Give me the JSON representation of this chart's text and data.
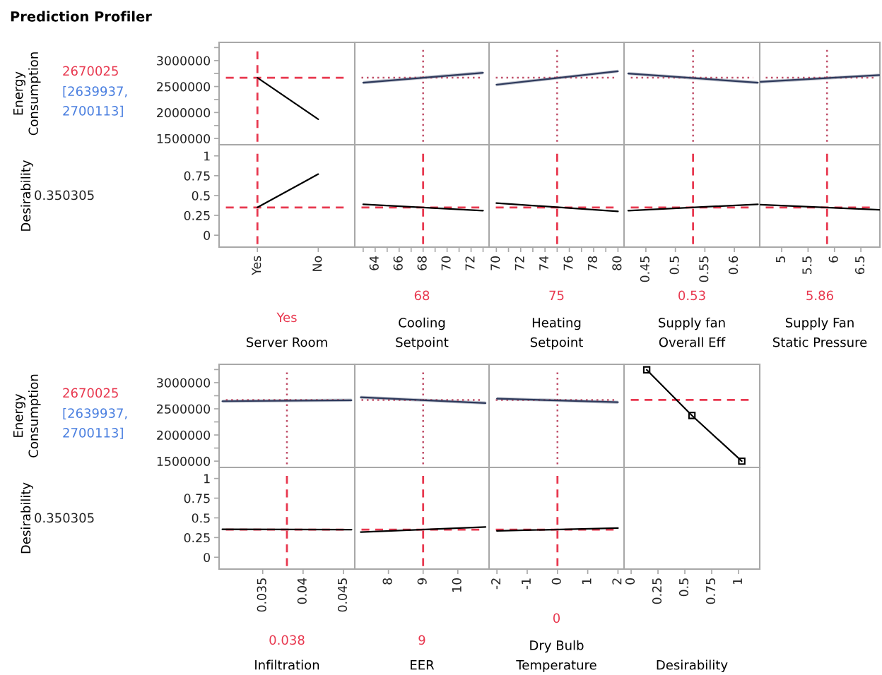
{
  "chart_data": [
    {
      "type": "line",
      "title": "Prediction Profiler",
      "ylabel": "Energy\nConsumption",
      "categories": [
        "Yes",
        "No"
      ],
      "series": [
        {
          "color": "#000000",
          "values": [
            2670000,
            1870000
          ]
        }
      ],
      "ylim": [
        1380000,
        3350000
      ],
      "yticks": [
        1500000,
        {
          "value": 1750000,
          "label": null
        },
        2000000,
        {
          "value": 2250000,
          "label": null
        },
        2500000,
        {
          "value": 2750000,
          "label": null
        },
        3000000,
        {
          "value": 3250000,
          "label": null
        }
      ],
      "ref_lines": [
        {
          "axis": "x",
          "value": "Yes",
          "color": "#e8384f",
          "line_style": "dashed"
        },
        {
          "axis": "y",
          "value": 2670025,
          "color": "#e8384f",
          "line_style": "dashed"
        }
      ],
      "annotations": [
        "2670025",
        "[2639937,\n2700113]"
      ],
      "tick_labels": "y"
    },
    {
      "type": "line",
      "x": [
        63,
        73
      ],
      "series": [
        {
          "color": "#2e3a5c",
          "values": [
            2575000,
            2765000
          ],
          "lower": [
            2545000,
            2735000
          ],
          "upper": [
            2605000,
            2795000
          ]
        }
      ],
      "xlim": [
        62.3,
        73.5
      ],
      "ylim": [
        1380000,
        3350000
      ],
      "ref_lines": [
        {
          "axis": "x",
          "value": 68,
          "color": "#c0506a",
          "line_style": "dotted"
        },
        {
          "axis": "y",
          "value": 2670025,
          "color": "#c0506a",
          "line_style": "dotted"
        }
      ],
      "tick_labels": false
    },
    {
      "type": "line",
      "x": [
        70,
        80
      ],
      "series": [
        {
          "color": "#2e3a5c",
          "values": [
            2535000,
            2795000
          ],
          "lower": [
            2505000,
            2765000
          ],
          "upper": [
            2565000,
            2825000
          ]
        }
      ],
      "xlim": [
        69.4,
        80.5
      ],
      "ylim": [
        1380000,
        3350000
      ],
      "ref_lines": [
        {
          "axis": "x",
          "value": 75,
          "color": "#c0506a",
          "line_style": "dotted"
        },
        {
          "axis": "y",
          "value": 2670025,
          "color": "#c0506a",
          "line_style": "dotted"
        }
      ],
      "tick_labels": false
    },
    {
      "type": "line",
      "x": [
        0.42,
        0.64
      ],
      "series": [
        {
          "color": "#2e3a5c",
          "values": [
            2750000,
            2575000
          ],
          "lower": [
            2720000,
            2545000
          ],
          "upper": [
            2780000,
            2605000
          ]
        }
      ],
      "xlim": [
        0.413,
        0.643
      ],
      "ylim": [
        1380000,
        3350000
      ],
      "ref_lines": [
        {
          "axis": "x",
          "value": 0.53,
          "color": "#c0506a",
          "line_style": "dotted"
        },
        {
          "axis": "y",
          "value": 2670025,
          "color": "#c0506a",
          "line_style": "dotted"
        }
      ],
      "tick_labels": false
    },
    {
      "type": "line",
      "x": [
        4.6,
        6.85
      ],
      "series": [
        {
          "color": "#2e3a5c",
          "values": [
            2590000,
            2720000
          ],
          "lower": [
            2560000,
            2690000
          ],
          "upper": [
            2620000,
            2750000
          ]
        }
      ],
      "xlim": [
        4.585,
        6.86
      ],
      "ylim": [
        1380000,
        3350000
      ],
      "ref_lines": [
        {
          "axis": "x",
          "value": 5.86,
          "color": "#c0506a",
          "line_style": "dotted"
        },
        {
          "axis": "y",
          "value": 2670025,
          "color": "#c0506a",
          "line_style": "dotted"
        }
      ],
      "tick_labels": false
    },
    {
      "type": "line",
      "ylabel": "Desirability",
      "xlabel": "Server Room",
      "categories": [
        "Yes",
        "No"
      ],
      "series": [
        {
          "color": "#000000",
          "values": [
            0.35,
            0.77
          ]
        }
      ],
      "ylim": [
        -0.15,
        1.14
      ],
      "yticks": [
        0,
        0.25,
        0.5,
        0.75,
        1
      ],
      "ref_lines": [
        {
          "axis": "x",
          "value": "Yes",
          "color": "#e8384f",
          "line_style": "dashed"
        },
        {
          "axis": "y",
          "value": 0.350305,
          "color": "#e8384f",
          "line_style": "dashed"
        }
      ],
      "annotations": [
        "Yes",
        "0.350305"
      ]
    },
    {
      "type": "line",
      "xlabel": "Cooling\nSetpoint",
      "x": [
        63,
        73
      ],
      "series": [
        {
          "color": "#000000",
          "values": [
            0.39,
            0.31
          ]
        }
      ],
      "xlim": [
        62.3,
        73.5
      ],
      "ylim": [
        -0.15,
        1.14
      ],
      "xticks": [
        {
          "value": 63,
          "label": null
        },
        64,
        {
          "value": 65,
          "label": null
        },
        66,
        {
          "value": 67,
          "label": null
        },
        68,
        {
          "value": 69,
          "label": null
        },
        70,
        {
          "value": 71,
          "label": null
        },
        72,
        {
          "value": 73,
          "label": null
        }
      ],
      "ref_lines": [
        {
          "axis": "x",
          "value": 68,
          "color": "#e8384f",
          "line_style": "dashed"
        },
        {
          "axis": "y",
          "value": 0.350305,
          "color": "#e8384f",
          "line_style": "dashed"
        }
      ],
      "annotations": [
        "68"
      ],
      "tick_labels": "x"
    },
    {
      "type": "line",
      "xlabel": "Heating\nSetpoint",
      "x": [
        70,
        80
      ],
      "series": [
        {
          "color": "#000000",
          "values": [
            0.405,
            0.3
          ]
        }
      ],
      "xlim": [
        69.4,
        80.5
      ],
      "ylim": [
        -0.15,
        1.14
      ],
      "xticks": [
        70,
        {
          "value": 71,
          "label": null
        },
        72,
        {
          "value": 73,
          "label": null
        },
        74,
        {
          "value": 75,
          "label": null
        },
        76,
        {
          "value": 77,
          "label": null
        },
        78,
        {
          "value": 79,
          "label": null
        },
        80
      ],
      "ref_lines": [
        {
          "axis": "x",
          "value": 75,
          "color": "#e8384f",
          "line_style": "dashed"
        },
        {
          "axis": "y",
          "value": 0.350305,
          "color": "#e8384f",
          "line_style": "dashed"
        }
      ],
      "annotations": [
        "75"
      ],
      "tick_labels": "x"
    },
    {
      "type": "line",
      "xlabel": "Supply fan\nOverall Eff",
      "x": [
        0.42,
        0.64
      ],
      "series": [
        {
          "color": "#000000",
          "values": [
            0.31,
            0.39
          ]
        }
      ],
      "xlim": [
        0.413,
        0.643
      ],
      "ylim": [
        -0.15,
        1.14
      ],
      "xticks": [
        0.45,
        0.5,
        0.55,
        0.6
      ],
      "ref_lines": [
        {
          "axis": "x",
          "value": 0.53,
          "color": "#e8384f",
          "line_style": "dashed"
        },
        {
          "axis": "y",
          "value": 0.350305,
          "color": "#e8384f",
          "line_style": "dashed"
        }
      ],
      "annotations": [
        "0.53"
      ],
      "tick_labels": "x"
    },
    {
      "type": "line",
      "xlabel": "Supply Fan\nStatic Pressure",
      "x": [
        4.6,
        6.85
      ],
      "series": [
        {
          "color": "#000000",
          "values": [
            0.385,
            0.32
          ]
        }
      ],
      "xlim": [
        4.585,
        6.86
      ],
      "ylim": [
        -0.15,
        1.14
      ],
      "xticks": [
        5,
        5.5,
        6,
        6.5
      ],
      "ref_lines": [
        {
          "axis": "x",
          "value": 5.86,
          "color": "#e8384f",
          "line_style": "dashed"
        },
        {
          "axis": "y",
          "value": 0.350305,
          "color": "#e8384f",
          "line_style": "dashed"
        }
      ],
      "annotations": [
        "5.86"
      ],
      "tick_labels": "x"
    },
    {
      "type": "line",
      "ylabel": "Energy\nConsumption",
      "x": [
        0.03,
        0.046
      ],
      "series": [
        {
          "color": "#2e3a5c",
          "values": [
            2645000,
            2665000
          ],
          "lower": [
            2615000,
            2635000
          ],
          "upper": [
            2675000,
            2695000
          ]
        }
      ],
      "xlim": [
        0.0296,
        0.0464
      ],
      "ylim": [
        1380000,
        3350000
      ],
      "yticks": [
        1500000,
        {
          "value": 1750000,
          "label": null
        },
        2000000,
        {
          "value": 2250000,
          "label": null
        },
        2500000,
        {
          "value": 2750000,
          "label": null
        },
        3000000,
        {
          "value": 3250000,
          "label": null
        }
      ],
      "ref_lines": [
        {
          "axis": "x",
          "value": 0.038,
          "color": "#c0506a",
          "line_style": "dotted"
        },
        {
          "axis": "y",
          "value": 2670025,
          "color": "#c0506a",
          "line_style": "dotted"
        }
      ],
      "annotations": [
        "2670025",
        "[2639937,\n2700113]"
      ],
      "tick_labels": "y"
    },
    {
      "type": "line",
      "x": [
        7.2,
        10.8
      ],
      "series": [
        {
          "color": "#2e3a5c",
          "values": [
            2720000,
            2610000
          ],
          "lower": [
            2690000,
            2580000
          ],
          "upper": [
            2750000,
            2640000
          ]
        }
      ],
      "xlim": [
        7.03,
        10.9
      ],
      "ylim": [
        1380000,
        3350000
      ],
      "ref_lines": [
        {
          "axis": "x",
          "value": 9,
          "color": "#c0506a",
          "line_style": "dotted"
        },
        {
          "axis": "y",
          "value": 2670025,
          "color": "#c0506a",
          "line_style": "dotted"
        }
      ],
      "tick_labels": false
    },
    {
      "type": "line",
      "x": [
        -2,
        2
      ],
      "series": [
        {
          "color": "#2e3a5c",
          "values": [
            2695000,
            2625000
          ],
          "lower": [
            2665000,
            2595000
          ],
          "upper": [
            2725000,
            2655000
          ]
        }
      ],
      "xlim": [
        -2.26,
        2.2
      ],
      "ylim": [
        1380000,
        3350000
      ],
      "ref_lines": [
        {
          "axis": "x",
          "value": 0,
          "color": "#c0506a",
          "line_style": "dotted"
        },
        {
          "axis": "y",
          "value": 2670025,
          "color": "#c0506a",
          "line_style": "dotted"
        }
      ],
      "tick_labels": false
    },
    {
      "type": "line",
      "x": [
        0.145,
        0.566,
        1.03
      ],
      "series": [
        {
          "color": "#000000",
          "values": [
            3245000,
            2372000,
            1500000
          ]
        }
      ],
      "marker": "square",
      "xlim": [
        -0.066,
        1.197
      ],
      "ylim": [
        1380000,
        3350000
      ],
      "ref_lines": [
        {
          "axis": "y",
          "value": 2670025,
          "color": "#e8384f",
          "line_style": "dashed"
        }
      ],
      "tick_labels": false
    },
    {
      "type": "line",
      "ylabel": "Desirability",
      "xlabel": "Infiltration",
      "x": [
        0.03,
        0.046
      ],
      "series": [
        {
          "color": "#000000",
          "values": [
            0.355,
            0.35
          ]
        }
      ],
      "xlim": [
        0.0296,
        0.0464
      ],
      "ylim": [
        -0.15,
        1.14
      ],
      "xticks": [
        0.035,
        0.04,
        0.045
      ],
      "yticks": [
        0,
        0.25,
        0.5,
        0.75,
        1
      ],
      "ref_lines": [
        {
          "axis": "x",
          "value": 0.038,
          "color": "#e8384f",
          "line_style": "dashed"
        },
        {
          "axis": "y",
          "value": 0.350305,
          "color": "#e8384f",
          "line_style": "dashed"
        }
      ],
      "annotations": [
        "0.038",
        "0.350305"
      ]
    },
    {
      "type": "line",
      "xlabel": "EER",
      "x": [
        7.2,
        10.8
      ],
      "series": [
        {
          "color": "#000000",
          "values": [
            0.32,
            0.385
          ]
        }
      ],
      "xlim": [
        7.03,
        10.9
      ],
      "ylim": [
        -0.15,
        1.14
      ],
      "xticks": [
        8,
        9,
        10
      ],
      "ref_lines": [
        {
          "axis": "x",
          "value": 9,
          "color": "#e8384f",
          "line_style": "dashed"
        },
        {
          "axis": "y",
          "value": 0.350305,
          "color": "#e8384f",
          "line_style": "dashed"
        }
      ],
      "annotations": [
        "9"
      ],
      "tick_labels": "x"
    },
    {
      "type": "line",
      "xlabel": "Dry Bulb\nTemperature",
      "x": [
        -2,
        2
      ],
      "series": [
        {
          "color": "#000000",
          "values": [
            0.335,
            0.37
          ]
        }
      ],
      "xlim": [
        -2.26,
        2.2
      ],
      "ylim": [
        -0.15,
        1.14
      ],
      "xticks": [
        -2,
        -1,
        0,
        1,
        2
      ],
      "ref_lines": [
        {
          "axis": "x",
          "value": 0,
          "color": "#e8384f",
          "line_style": "dashed"
        },
        {
          "axis": "y",
          "value": 0.350305,
          "color": "#e8384f",
          "line_style": "dashed"
        }
      ],
      "annotations": [
        "0"
      ],
      "tick_labels": "x"
    },
    {
      "type": "line",
      "xlabel": "Desirability",
      "xlim": [
        -0.066,
        1.197
      ],
      "ylim": [
        -0.15,
        1.14
      ],
      "xticks": [
        0,
        0.25,
        0.5,
        0.75,
        1
      ],
      "tick_labels": "x"
    }
  ]
}
